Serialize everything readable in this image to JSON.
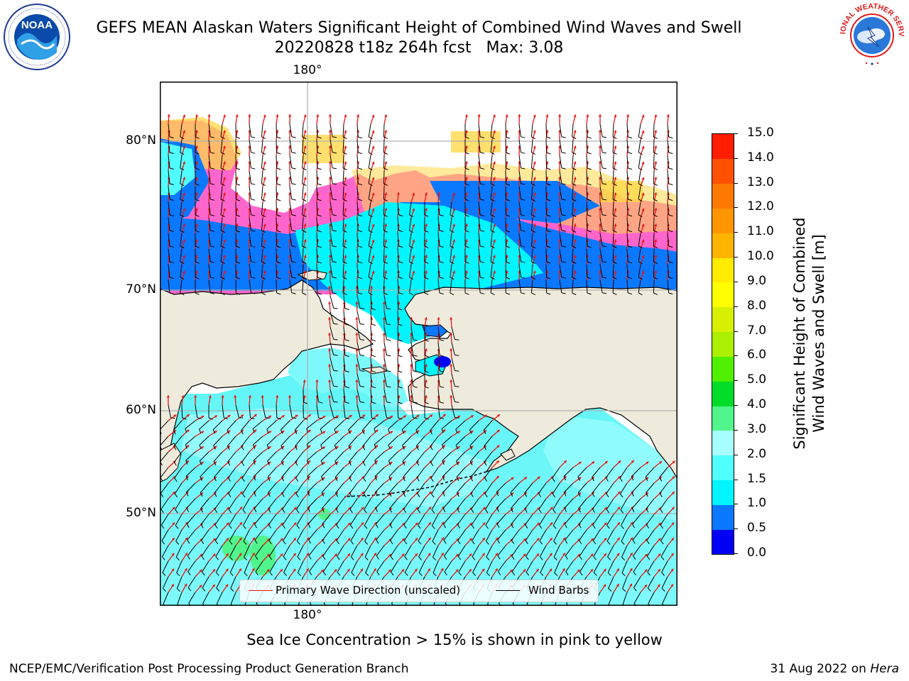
{
  "header": {
    "title": "GEFS MEAN Alaskan Waters Significant Height of Combined Wind Waves and Swell",
    "subtitle": "20220828 t18z 264h fcst   Max: 3.08"
  },
  "logos": {
    "left": {
      "name": "noaa-logo",
      "text": "NOAA",
      "ring_text": "NATIONAL OCEANIC AND ATMOSPHERIC ADMINISTRATION · U.S. DEPARTMENT OF COMMERCE"
    },
    "right": {
      "name": "nws-logo",
      "ring_text": "NATIONAL WEATHER SERVICE"
    }
  },
  "map": {
    "lat_labels": [
      "80°N",
      "70°N",
      "60°N",
      "50°N"
    ],
    "lon_label_top": "180°",
    "lon_label_bottom": "180°",
    "land_color": "#efebdc",
    "grid_color": "#b0b0b0"
  },
  "legend": {
    "primary_wave": "Primary Wave Direction (unscaled)",
    "wind_barbs": "Wind Barbs",
    "primary_wave_color": "#e8150f",
    "wind_barbs_color": "#000000"
  },
  "colorbar": {
    "title_line1": "Significant Height of Combined",
    "title_line2": "Wind Waves and Swell [m]",
    "ticks": [
      "0.0",
      "0.5",
      "1.0",
      "1.5",
      "2.0",
      "3.0",
      "4.0",
      "5.0",
      "6.0",
      "7.0",
      "8.0",
      "9.0",
      "10.0",
      "11.0",
      "12.0",
      "13.0",
      "14.0",
      "15.0"
    ],
    "colors": [
      "#0000f5",
      "#0a78ff",
      "#00f5ff",
      "#50ffff",
      "#a8ffff",
      "#50f58c",
      "#00dc28",
      "#50f000",
      "#aaf000",
      "#d7f000",
      "#ffff00",
      "#ffeb00",
      "#ffb400",
      "#ff9600",
      "#ff7800",
      "#ff5000",
      "#ff1e00"
    ]
  },
  "caption": "Sea Ice Concentration > 15% is shown in pink to yellow",
  "footer": {
    "left": "NCEP/EMC/Verification Post Processing Product Generation Branch",
    "right_date": "31 Aug 2022 on",
    "right_host": "Hera"
  }
}
